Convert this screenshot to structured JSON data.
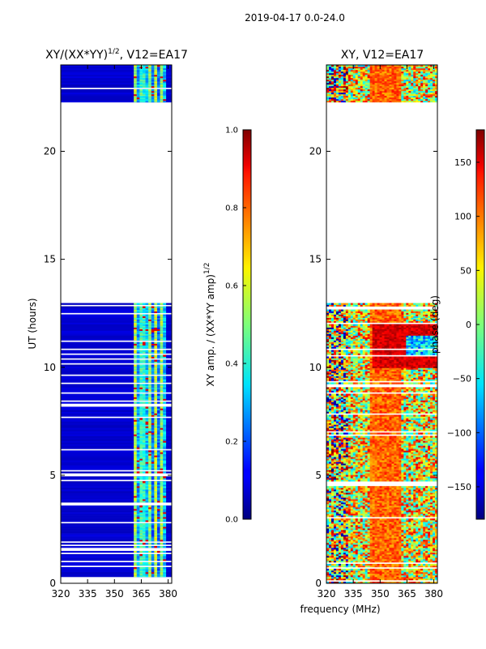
{
  "figure": {
    "suptitle": "2019-04-17 0.0-24.0",
    "xlabel": "frequency (MHz)"
  },
  "chart_data": [
    {
      "type": "heatmap",
      "title": "XY/(XX*YY)",
      "title_exponent": "1/2",
      "title_suffix": ", V12=EA17",
      "xlabel": "",
      "ylabel": "UT (hours)",
      "x_range": [
        320,
        382
      ],
      "y_range": [
        0,
        24
      ],
      "xticks": [
        320,
        335,
        350,
        365,
        380
      ],
      "yticks": [
        0,
        5,
        10,
        15,
        20
      ],
      "colorbar": {
        "label": "XY amp. / (XX*YY amp)",
        "label_exponent": "1/2",
        "range": [
          0.0,
          1.0
        ],
        "ticks": [
          "0.0",
          "0.2",
          "0.4",
          "0.6",
          "0.8",
          "1.0"
        ],
        "colormap": "jet"
      },
      "data_blocks_hours": [
        [
          0.3,
          13.0
        ],
        [
          22.3,
          24.0
        ]
      ],
      "band_of_elevated_amplitude_MHz": [
        361,
        378
      ],
      "typical_value_outside_band": 0.05,
      "typical_value_in_band": 0.4
    },
    {
      "type": "heatmap",
      "title": "XY, V12=EA17",
      "xlabel": "",
      "ylabel": "phase (deg)",
      "x_range": [
        320,
        382
      ],
      "y_range": [
        0,
        24
      ],
      "xticks": [
        320,
        335,
        350,
        365,
        380
      ],
      "yticks": [
        0,
        5,
        10,
        15,
        20
      ],
      "colorbar": {
        "label": "phase (deg)",
        "range": [
          -180,
          180
        ],
        "ticks": [
          "150",
          "100",
          "50",
          "0",
          "−50",
          "−100",
          "−150"
        ],
        "colormap": "jet"
      },
      "data_blocks_hours": [
        [
          0.0,
          13.0
        ],
        [
          22.3,
          24.0
        ]
      ],
      "typical_phase_center_deg": 80
    }
  ]
}
